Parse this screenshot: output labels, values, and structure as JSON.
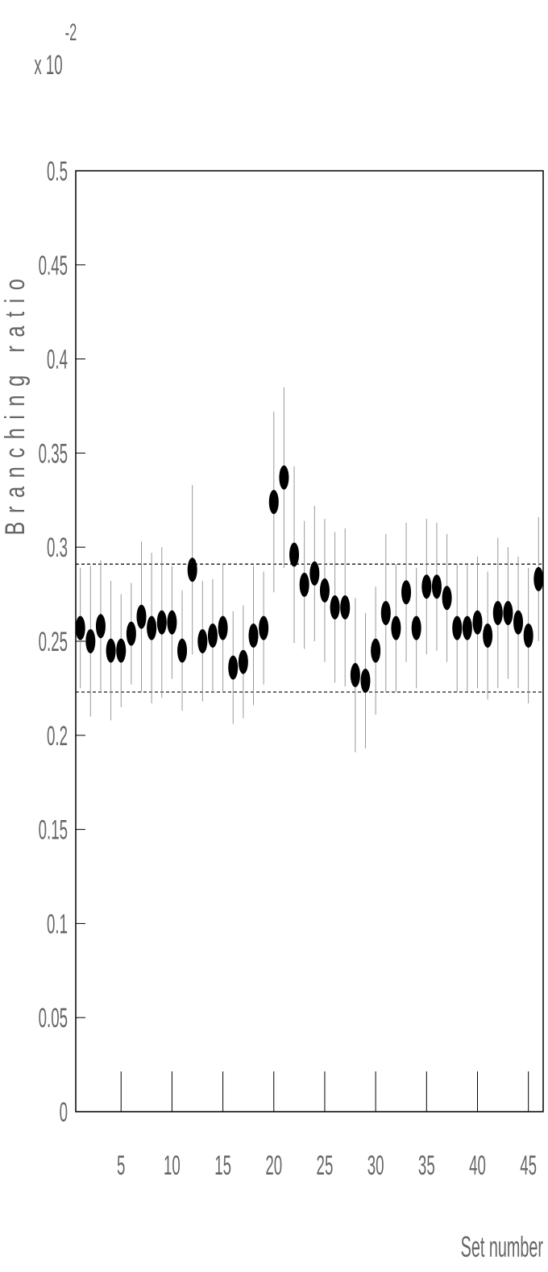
{
  "chart_data": {
    "type": "errorbar-scatter",
    "y_multiplier": {
      "base": "x 10",
      "exponent": "-2"
    },
    "y_label": "Branching ratio",
    "x_label": "Set number",
    "x": [
      1,
      2,
      3,
      4,
      5,
      6,
      7,
      8,
      9,
      10,
      11,
      12,
      13,
      14,
      15,
      16,
      17,
      18,
      19,
      20,
      21,
      22,
      23,
      24,
      25,
      26,
      27,
      28,
      29,
      30,
      31,
      32,
      33,
      34,
      35,
      36,
      37,
      38,
      39,
      40,
      41,
      42,
      43,
      44,
      45,
      46
    ],
    "series": [
      {
        "color": "#000000",
        "values": [
          0.257,
          0.25,
          0.258,
          0.245,
          0.245,
          0.254,
          0.263,
          0.257,
          0.26,
          0.26,
          0.245,
          0.288,
          0.25,
          0.253,
          0.257,
          0.236,
          0.239,
          0.253,
          0.257,
          0.324,
          0.337,
          0.296,
          0.28,
          0.286,
          0.277,
          0.268,
          0.268,
          0.232,
          0.229,
          0.245,
          0.265,
          0.257,
          0.276,
          0.257,
          0.279,
          0.279,
          0.273,
          0.257,
          0.257,
          0.26,
          0.253,
          0.265,
          0.265,
          0.26,
          0.253,
          0.283
        ],
        "errors": [
          0.032,
          0.04,
          0.035,
          0.037,
          0.03,
          0.027,
          0.04,
          0.04,
          0.04,
          0.03,
          0.032,
          0.045,
          0.032,
          0.03,
          0.034,
          0.03,
          0.03,
          0.037,
          0.03,
          0.048,
          0.048,
          0.047,
          0.034,
          0.036,
          0.038,
          0.04,
          0.042,
          0.041,
          0.036,
          0.034,
          0.042,
          0.034,
          0.037,
          0.032,
          0.036,
          0.034,
          0.034,
          0.034,
          0.034,
          0.035,
          0.034,
          0.04,
          0.035,
          0.035,
          0.036,
          0.033
        ]
      }
    ],
    "reference_lines": [
      0.291,
      0.223
    ],
    "xlim": [
      0.55,
      46.45
    ],
    "xticks": [
      5,
      10,
      15,
      20,
      25,
      30,
      35,
      40,
      45
    ],
    "ylim": [
      0,
      0.5
    ],
    "yticks": [
      0,
      0.05,
      0.1,
      0.15,
      0.2,
      0.25,
      0.3,
      0.35,
      0.4,
      0.45,
      0.5
    ]
  }
}
